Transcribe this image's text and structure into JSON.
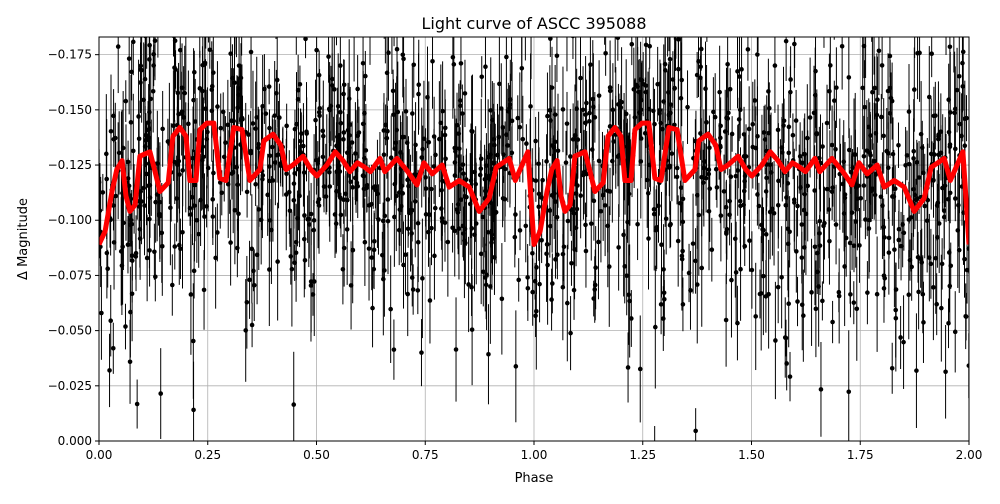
{
  "chart_data": {
    "type": "scatter",
    "title": "Light curve of ASCC 395088",
    "xlabel": "Phase",
    "ylabel": "Δ Magnitude",
    "xlim": [
      0,
      2
    ],
    "ylim": [
      0,
      -0.183
    ],
    "grid": true,
    "x_ticks": [
      "0.00",
      "0.25",
      "0.50",
      "0.75",
      "1.00",
      "1.25",
      "1.50",
      "1.75",
      "2.00"
    ],
    "x_tick_values": [
      0,
      0.25,
      0.5,
      0.75,
      1,
      1.25,
      1.5,
      1.75,
      2
    ],
    "y_ticks": [
      "0.000",
      "−0.025",
      "−0.050",
      "−0.075",
      "−0.100",
      "−0.125",
      "−0.150",
      "−0.175"
    ],
    "y_tick_values": [
      0,
      -0.025,
      -0.05,
      -0.075,
      -0.1,
      -0.125,
      -0.15,
      -0.175
    ],
    "series": [
      {
        "name": "observations",
        "kind": "errorbar-scatter",
        "color": "#000000",
        "generated": {
          "n_points": 1400,
          "noise_std": 0.035,
          "seed": 395088,
          "around": "model"
        }
      },
      {
        "name": "model",
        "kind": "line",
        "color": "#ff0000",
        "period": 1,
        "phase": [
          0,
          0.014,
          0.03,
          0.041,
          0.053,
          0.062,
          0.071,
          0.083,
          0.094,
          0.117,
          0.129,
          0.14,
          0.159,
          0.17,
          0.186,
          0.2,
          0.209,
          0.223,
          0.232,
          0.248,
          0.264,
          0.278,
          0.292,
          0.31,
          0.329,
          0.347,
          0.37,
          0.379,
          0.4,
          0.418,
          0.43,
          0.446,
          0.469,
          0.487,
          0.501,
          0.524,
          0.543,
          0.561,
          0.577,
          0.594,
          0.611,
          0.624,
          0.646,
          0.657,
          0.671,
          0.685,
          0.71,
          0.731,
          0.747,
          0.766,
          0.789,
          0.805,
          0.828,
          0.851,
          0.874,
          0.897,
          0.913,
          0.943,
          0.957,
          0.986,
          1.0
        ],
        "values": [
          -0.089,
          -0.095,
          -0.113,
          -0.123,
          -0.127,
          -0.111,
          -0.104,
          -0.107,
          -0.129,
          -0.131,
          -0.122,
          -0.113,
          -0.117,
          -0.138,
          -0.142,
          -0.138,
          -0.118,
          -0.118,
          -0.141,
          -0.144,
          -0.144,
          -0.119,
          -0.118,
          -0.142,
          -0.141,
          -0.118,
          -0.123,
          -0.136,
          -0.139,
          -0.134,
          -0.123,
          -0.125,
          -0.129,
          -0.123,
          -0.12,
          -0.125,
          -0.131,
          -0.127,
          -0.122,
          -0.126,
          -0.124,
          -0.122,
          -0.128,
          -0.122,
          -0.125,
          -0.128,
          -0.122,
          -0.116,
          -0.126,
          -0.121,
          -0.125,
          -0.115,
          -0.118,
          -0.115,
          -0.104,
          -0.11,
          -0.124,
          -0.128,
          -0.118,
          -0.131,
          -0.089
        ]
      }
    ]
  }
}
